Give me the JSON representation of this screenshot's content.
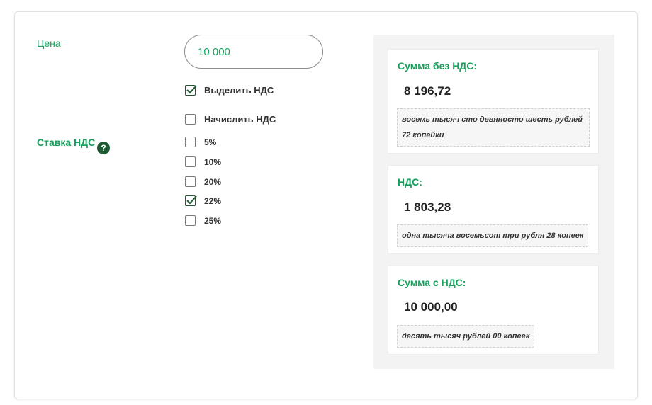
{
  "form": {
    "price_label": "Цена",
    "price_value": "10 000",
    "vat_rate_label": "Ставка НДС",
    "help_symbol": "?",
    "mode_options": [
      {
        "label": "Выделить НДС",
        "checked": true
      },
      {
        "label": "Начислить НДС",
        "checked": false
      }
    ],
    "rate_options": [
      {
        "label": "5%",
        "checked": false
      },
      {
        "label": "10%",
        "checked": false
      },
      {
        "label": "20%",
        "checked": false
      },
      {
        "label": "22%",
        "checked": true
      },
      {
        "label": "25%",
        "checked": false
      }
    ]
  },
  "results": [
    {
      "title": "Сумма без НДС:",
      "value": "8 196,72",
      "words": "восемь тысяч сто девяносто шесть рублей 72 копейки"
    },
    {
      "title": "НДС:",
      "value": "1 803,28",
      "words": "одна тысяча восемьсот три рубля 28 копеек"
    },
    {
      "title": "Сумма с НДС:",
      "value": "10 000,00",
      "words": "десять тысяч рублей 00 копеек"
    }
  ],
  "colors": {
    "accent": "#16a05c",
    "check": "#1e5a32"
  }
}
